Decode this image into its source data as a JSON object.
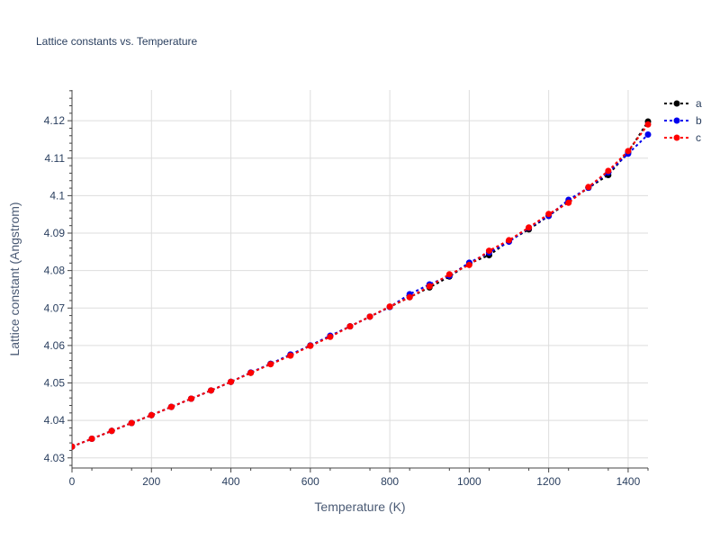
{
  "chart_data": {
    "type": "line",
    "title": "Lattice constants vs. Temperature",
    "xlabel": "Temperature (K)",
    "ylabel": "Lattice constant (Angstrom)",
    "xlim": [
      0,
      1450
    ],
    "ylim": [
      4.0273,
      4.1282
    ],
    "x_ticks": [
      0,
      200,
      400,
      600,
      800,
      1000,
      1200,
      1400
    ],
    "y_ticks": [
      4.03,
      4.04,
      4.05,
      4.06,
      4.07,
      4.08,
      4.09,
      4.1,
      4.11,
      4.12
    ],
    "y_tick_labels": [
      "4.03",
      "4.04",
      "4.05",
      "4.06",
      "4.07",
      "4.08",
      "4.09",
      "4.1",
      "4.11",
      "4.12"
    ],
    "grid": true,
    "legend_position": "top-right",
    "x": [
      0,
      50,
      100,
      150,
      200,
      250,
      300,
      350,
      400,
      450,
      500,
      550,
      600,
      650,
      700,
      750,
      800,
      850,
      900,
      950,
      1000,
      1050,
      1100,
      1150,
      1200,
      1250,
      1300,
      1350,
      1400,
      1450
    ],
    "series": [
      {
        "name": "a",
        "color": "#000000",
        "values": [
          4.033,
          4.0351,
          4.0372,
          4.0393,
          4.0414,
          4.0436,
          4.0458,
          4.048,
          4.0503,
          4.0527,
          4.0551,
          4.0575,
          4.06,
          4.0625,
          4.0651,
          4.0677,
          4.0703,
          4.0729,
          4.0755,
          4.0784,
          4.0819,
          4.0841,
          4.0879,
          4.091,
          4.0946,
          4.0984,
          4.1021,
          4.1055,
          4.1116,
          4.1198
        ]
      },
      {
        "name": "b",
        "color": "#0000ee",
        "values": [
          4.033,
          4.0351,
          4.0372,
          4.0393,
          4.0414,
          4.0436,
          4.0458,
          4.048,
          4.0503,
          4.0528,
          4.0551,
          4.0576,
          4.06,
          4.0626,
          4.0651,
          4.0677,
          4.0703,
          4.0737,
          4.0763,
          4.0786,
          4.0821,
          4.0848,
          4.0877,
          4.0914,
          4.0946,
          4.0989,
          4.1021,
          4.1062,
          4.1112,
          4.1163
        ]
      },
      {
        "name": "c",
        "color": "#ff0000",
        "values": [
          4.033,
          4.0351,
          4.0372,
          4.0393,
          4.0414,
          4.0436,
          4.0458,
          4.048,
          4.0503,
          4.0527,
          4.055,
          4.0573,
          4.0599,
          4.0623,
          4.0651,
          4.0677,
          4.0704,
          4.0729,
          4.0758,
          4.079,
          4.0815,
          4.0853,
          4.0881,
          4.0915,
          4.0951,
          4.0981,
          4.1023,
          4.1066,
          4.1119,
          4.119
        ]
      }
    ]
  }
}
